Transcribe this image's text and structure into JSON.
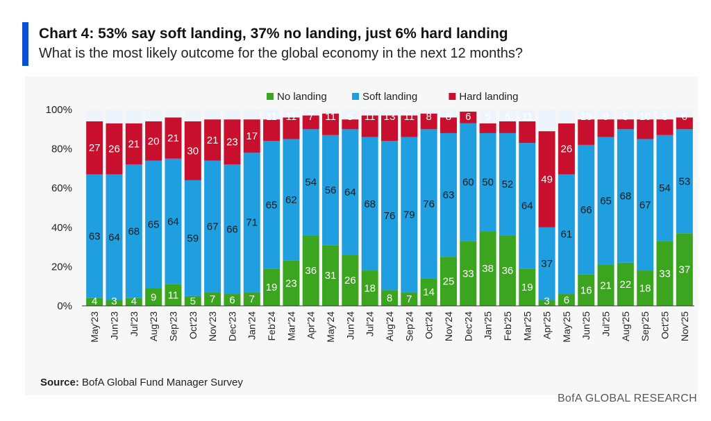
{
  "header": {
    "title": "Chart 4: 53% say soft landing, 37% no landing, just 6% hard landing",
    "subtitle": "What is the most likely outcome for the global economy in the next 12 months?"
  },
  "footer": {
    "source_label": "Source:",
    "source_text": "BofA Global Fund Manager Survey",
    "brand": "BofA GLOBAL RESEARCH"
  },
  "colors": {
    "no_landing": "#3ba51f",
    "soft_landing": "#1f9fe0",
    "hard_landing": "#c8102e",
    "accent": "#0a4fd1"
  },
  "chart_data": {
    "type": "bar",
    "stacked": true,
    "title": "Chart 4: 53% say soft landing, 37% no landing, just 6% hard landing",
    "subtitle": "What is the most likely outcome for the global economy in the next 12 months?",
    "legend_position": "top",
    "y_tick_labels": [
      "0%",
      "20%",
      "40%",
      "60%",
      "80%",
      "100%"
    ],
    "ylim": [
      0,
      100
    ],
    "categories": [
      "May'23",
      "Jun'23",
      "Jul'23",
      "Aug'23",
      "Sep'23",
      "Oct'23",
      "Nov'23",
      "Dec'23",
      "Jan'24",
      "Feb'24",
      "Mar'24",
      "Apr'24",
      "May'24",
      "Jun'24",
      "Jul'24",
      "Aug'24",
      "Sep'24",
      "Oct'24",
      "Nov'24",
      "Dec'24",
      "Jan'25",
      "Feb'25",
      "Mar'25",
      "Apr'25",
      "May'25",
      "Jun'25",
      "Jul'25",
      "Aug'25",
      "Sep'25",
      "Oct'25",
      "Nov'25"
    ],
    "series": [
      {
        "name": "No landing",
        "color": "#3ba51f",
        "values": [
          4,
          3,
          4,
          9,
          11,
          5,
          7,
          6,
          7,
          19,
          23,
          36,
          31,
          26,
          18,
          8,
          7,
          14,
          25,
          33,
          38,
          36,
          19,
          3,
          6,
          16,
          21,
          22,
          18,
          33,
          37
        ]
      },
      {
        "name": "Soft landing",
        "color": "#1f9fe0",
        "values": [
          63,
          64,
          68,
          65,
          64,
          59,
          67,
          66,
          71,
          65,
          62,
          54,
          56,
          64,
          68,
          76,
          79,
          76,
          63,
          60,
          50,
          52,
          64,
          37,
          61,
          66,
          65,
          68,
          67,
          54,
          53
        ]
      },
      {
        "name": "Hard landing",
        "color": "#c8102e",
        "values": [
          27,
          26,
          21,
          20,
          21,
          30,
          21,
          23,
          17,
          11,
          11,
          7,
          11,
          5,
          11,
          13,
          11,
          8,
          8,
          6,
          5,
          6,
          11,
          49,
          26,
          13,
          9,
          5,
          10,
          8,
          6
        ]
      }
    ]
  }
}
